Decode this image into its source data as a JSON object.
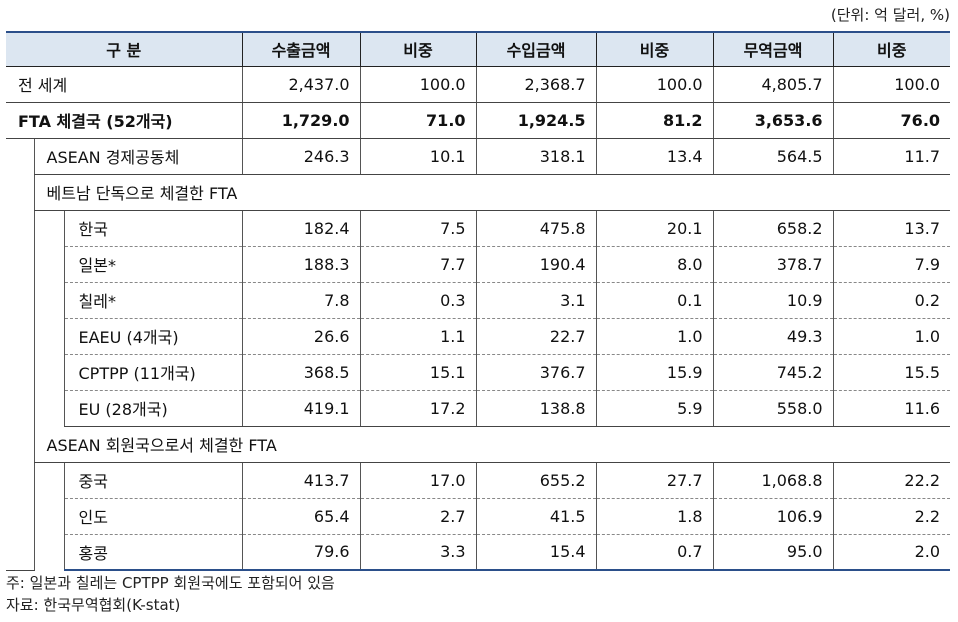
{
  "unit_note": "(단위: 억 달러, %)",
  "headers": [
    "구  분",
    "수출금액",
    "비중",
    "수입금액",
    "비중",
    "무역금액",
    "비중"
  ],
  "world": {
    "label": "전 세계",
    "values": [
      "2,437.0",
      "100.0",
      "2,368.7",
      "100.0",
      "4,805.7",
      "100.0"
    ]
  },
  "fta_total": {
    "label": "FTA 체결국 (52개국)",
    "values": [
      "1,729.0",
      "71.0",
      "1,924.5",
      "81.2",
      "3,653.6",
      "76.0"
    ]
  },
  "asean_comm": {
    "label": "ASEAN 경제공동체",
    "values": [
      "246.3",
      "10.1",
      "318.1",
      "13.4",
      "564.5",
      "11.7"
    ]
  },
  "group1": {
    "label": "베트남 단독으로 체결한 FTA",
    "rows": [
      {
        "label": "한국",
        "values": [
          "182.4",
          "7.5",
          "475.8",
          "20.1",
          "658.2",
          "13.7"
        ]
      },
      {
        "label": "일본*",
        "values": [
          "188.3",
          "7.7",
          "190.4",
          "8.0",
          "378.7",
          "7.9"
        ]
      },
      {
        "label": "칠레*",
        "values": [
          "7.8",
          "0.3",
          "3.1",
          "0.1",
          "10.9",
          "0.2"
        ]
      },
      {
        "label": "EAEU (4개국)",
        "values": [
          "26.6",
          "1.1",
          "22.7",
          "1.0",
          "49.3",
          "1.0"
        ]
      },
      {
        "label": "CPTPP (11개국)",
        "values": [
          "368.5",
          "15.1",
          "376.7",
          "15.9",
          "745.2",
          "15.5"
        ]
      },
      {
        "label": "EU (28개국)",
        "values": [
          "419.1",
          "17.2",
          "138.8",
          "5.9",
          "558.0",
          "11.6"
        ]
      }
    ]
  },
  "group2": {
    "label": "ASEAN 회원국으로서 체결한 FTA",
    "rows": [
      {
        "label": "중국",
        "values": [
          "413.7",
          "17.0",
          "655.2",
          "27.7",
          "1,068.8",
          "22.2"
        ]
      },
      {
        "label": "인도",
        "values": [
          "65.4",
          "2.7",
          "41.5",
          "1.8",
          "106.9",
          "2.2"
        ]
      },
      {
        "label": "홍콩",
        "values": [
          "79.6",
          "3.3",
          "15.4",
          "0.7",
          "95.0",
          "2.0"
        ]
      }
    ]
  },
  "notes": [
    "주: 일본과 칠레는 CPTPP 회원국에도 포함되어 있음",
    "자료: 한국무역협회(K-stat)"
  ]
}
